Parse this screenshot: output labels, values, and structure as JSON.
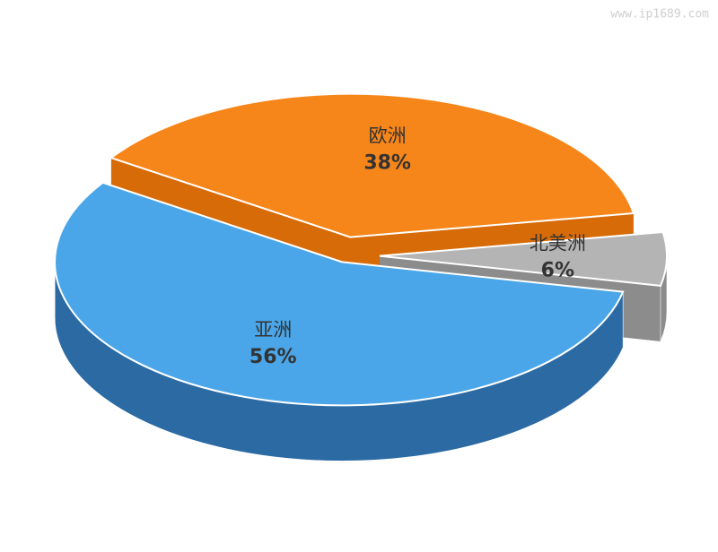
{
  "watermark": "www.ip1689.com",
  "chart_data": {
    "type": "pie",
    "categories": [
      "亚洲",
      "欧洲",
      "北美洲"
    ],
    "values": [
      56,
      38,
      6
    ],
    "value_labels": [
      "56%",
      "38%",
      "6%"
    ],
    "colors": [
      "#4aa6e8",
      "#f7861a",
      "#b4b4b4"
    ],
    "side_colors": [
      "#2b6aa3",
      "#d76b08",
      "#8c8c8c"
    ]
  }
}
